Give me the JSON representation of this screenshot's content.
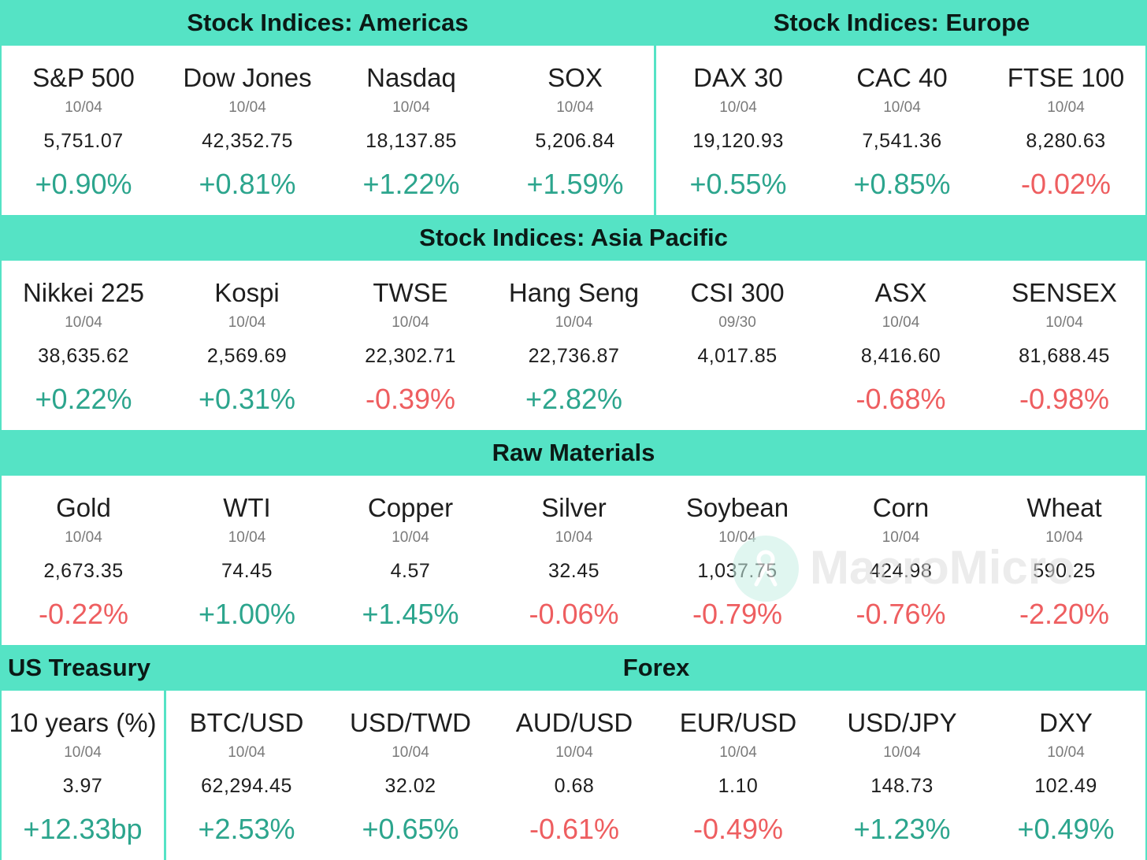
{
  "colors": {
    "header_bg": "#55e3c5",
    "panel_bg": "#ffffff",
    "up": "#2ca58d",
    "down": "#ee5e60"
  },
  "sections": {
    "americas": {
      "title": "Stock Indices: Americas",
      "items": [
        {
          "name": "S&P 500",
          "date": "10/04",
          "value": "5,751.07",
          "change": "+0.90%",
          "direction": "up"
        },
        {
          "name": "Dow Jones",
          "date": "10/04",
          "value": "42,352.75",
          "change": "+0.81%",
          "direction": "up"
        },
        {
          "name": "Nasdaq",
          "date": "10/04",
          "value": "18,137.85",
          "change": "+1.22%",
          "direction": "up"
        },
        {
          "name": "SOX",
          "date": "10/04",
          "value": "5,206.84",
          "change": "+1.59%",
          "direction": "up"
        }
      ]
    },
    "europe": {
      "title": "Stock Indices: Europe",
      "items": [
        {
          "name": "DAX 30",
          "date": "10/04",
          "value": "19,120.93",
          "change": "+0.55%",
          "direction": "up"
        },
        {
          "name": "CAC 40",
          "date": "10/04",
          "value": "7,541.36",
          "change": "+0.85%",
          "direction": "up"
        },
        {
          "name": "FTSE 100",
          "date": "10/04",
          "value": "8,280.63",
          "change": "-0.02%",
          "direction": "down"
        }
      ]
    },
    "asia": {
      "title": "Stock Indices: Asia Pacific",
      "items": [
        {
          "name": "Nikkei 225",
          "date": "10/04",
          "value": "38,635.62",
          "change": "+0.22%",
          "direction": "up"
        },
        {
          "name": "Kospi",
          "date": "10/04",
          "value": "2,569.69",
          "change": "+0.31%",
          "direction": "up"
        },
        {
          "name": "TWSE",
          "date": "10/04",
          "value": "22,302.71",
          "change": "-0.39%",
          "direction": "down"
        },
        {
          "name": "Hang Seng",
          "date": "10/04",
          "value": "22,736.87",
          "change": "+2.82%",
          "direction": "up"
        },
        {
          "name": "CSI 300",
          "date": "09/30",
          "value": "4,017.85",
          "change": "",
          "direction": ""
        },
        {
          "name": "ASX",
          "date": "10/04",
          "value": "8,416.60",
          "change": "-0.68%",
          "direction": "down"
        },
        {
          "name": "SENSEX",
          "date": "10/04",
          "value": "81,688.45",
          "change": "-0.98%",
          "direction": "down"
        }
      ]
    },
    "raw": {
      "title": "Raw Materials",
      "items": [
        {
          "name": "Gold",
          "date": "10/04",
          "value": "2,673.35",
          "change": "-0.22%",
          "direction": "down"
        },
        {
          "name": "WTI",
          "date": "10/04",
          "value": "74.45",
          "change": "+1.00%",
          "direction": "up"
        },
        {
          "name": "Copper",
          "date": "10/04",
          "value": "4.57",
          "change": "+1.45%",
          "direction": "up"
        },
        {
          "name": "Silver",
          "date": "10/04",
          "value": "32.45",
          "change": "-0.06%",
          "direction": "down"
        },
        {
          "name": "Soybean",
          "date": "10/04",
          "value": "1,037.75",
          "change": "-0.79%",
          "direction": "down"
        },
        {
          "name": "Corn",
          "date": "10/04",
          "value": "424.98",
          "change": "-0.76%",
          "direction": "down"
        },
        {
          "name": "Wheat",
          "date": "10/04",
          "value": "590.25",
          "change": "-2.20%",
          "direction": "down"
        }
      ]
    },
    "treasury": {
      "title": "US Treasury",
      "items": [
        {
          "name": "10 years (%)",
          "date": "10/04",
          "value": "3.97",
          "change": "+12.33bp",
          "direction": "up"
        }
      ]
    },
    "forex": {
      "title": "Forex",
      "items": [
        {
          "name": "BTC/USD",
          "date": "10/04",
          "value": "62,294.45",
          "change": "+2.53%",
          "direction": "up"
        },
        {
          "name": "USD/TWD",
          "date": "10/04",
          "value": "32.02",
          "change": "+0.65%",
          "direction": "up"
        },
        {
          "name": "AUD/USD",
          "date": "10/04",
          "value": "0.68",
          "change": "-0.61%",
          "direction": "down"
        },
        {
          "name": "EUR/USD",
          "date": "10/04",
          "value": "1.10",
          "change": "-0.49%",
          "direction": "down"
        },
        {
          "name": "USD/JPY",
          "date": "10/04",
          "value": "148.73",
          "change": "+1.23%",
          "direction": "up"
        },
        {
          "name": "DXY",
          "date": "10/04",
          "value": "102.49",
          "change": "+0.49%",
          "direction": "up"
        }
      ]
    }
  },
  "watermark": {
    "text": "MacroMicro",
    "icon": "macromicro-logo-icon"
  }
}
